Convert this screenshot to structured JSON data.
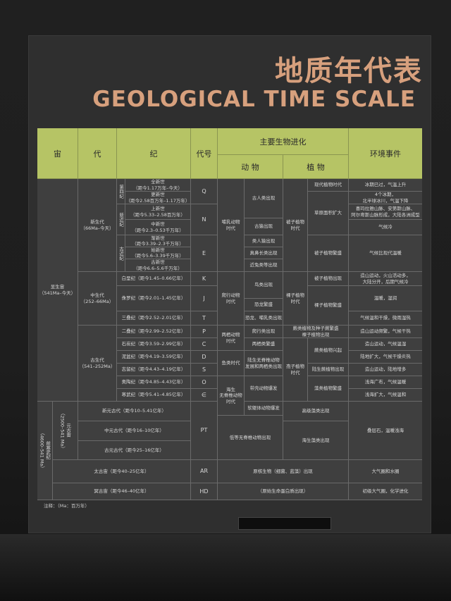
{
  "title_cn": "地质年代表",
  "title_en": "GEOLOGICAL TIME SCALE",
  "headers": {
    "eon": "宙",
    "era": "代",
    "period": "纪",
    "code": "代号",
    "bio": "主要生物进化",
    "animal": "动 物",
    "plant": "植 物",
    "env": "环境事件"
  },
  "eons": {
    "phanerozoic": "显生宙\n（541Ma–今天）",
    "precambrian": "前寒武纪\n（4600–541 Ma）",
    "proterozoic": "元古宙\n（2500–541 Ma）"
  },
  "eras": {
    "cenozoic": "新生代\n（66Ma–今天）",
    "mesozoic": "中生代\n（252–66Ma）",
    "paleozoic": "古生代\n（541–252Ma）"
  },
  "sub_periods": {
    "quaternary": "第四纪",
    "neogene": "新近纪",
    "paleogene": "古近纪"
  },
  "periods": [
    {
      "label": "全新世\n（距今1.17万年–今天）",
      "code": "Q"
    },
    {
      "label": "更新世\n（距今2.58百万年–1.17万年）",
      "code": ""
    },
    {
      "label": "上新世\n（距今5.33–2.58百万年）",
      "code": "N"
    },
    {
      "label": "中新世\n（距今2.3–0.53千万年）",
      "code": ""
    },
    {
      "label": "渐新世\n（距今3.39–2.3千万年）",
      "code": "E"
    },
    {
      "label": "始新世\n（距今5.6–3.39千万年）",
      "code": ""
    },
    {
      "label": "古新世\n（距今6.6–5.6千万年）",
      "code": ""
    },
    {
      "label": "白垩纪（距今1.45–0.66亿年）",
      "code": "K"
    },
    {
      "label": "侏罗纪（距今2.01–1.45亿年）",
      "code": "J"
    },
    {
      "label": "三叠纪（距今2.52–2.01亿年）",
      "code": "T"
    },
    {
      "label": "二叠纪（距今2.99–2.52亿年）",
      "code": "P"
    },
    {
      "label": "石炭纪（距今3.59–2.99亿年）",
      "code": "C"
    },
    {
      "label": "泥盆纪（距今4.19–3.59亿年）",
      "code": "D"
    },
    {
      "label": "志留纪（距今4.43–4.19亿年）",
      "code": "S"
    },
    {
      "label": "奥陶纪（距今4.85–4.43亿年）",
      "code": "O"
    },
    {
      "label": "寒武纪（距今5.41–4.85亿年）",
      "code": "∈"
    }
  ],
  "proterozoic_eras": [
    "新元古代（距今10–5.41亿年）",
    "中元古代（距今16–10亿年）",
    "古元古代（距今25–16亿年）"
  ],
  "proterozoic_code": "PT",
  "archean": {
    "label": "太古宙（距今40–25亿年）",
    "code": "AR"
  },
  "hadean": {
    "label": "冥古宙（距今46–40亿年）",
    "code": "HD"
  },
  "animals": {
    "mammal_age": "哺乳动物\n时代",
    "ancient_human": "古人类出现",
    "ancient_ape": "古猿出现",
    "monkey": "类人猿出现",
    "proboscidean": "真鼻长类出现",
    "hoofed": "近兔类等出现",
    "reptile_age": "爬行动物\n时代",
    "bird": "鸟类出现",
    "dino": "恐龙繁盛",
    "mammal_early": "恐龙、哺乳类出现",
    "amphibian_age": "两栖动物\n时代",
    "reptile_appear": "爬行类出现",
    "amphibian_boom": "两栖类繁盛",
    "fish_age": "鱼类时代",
    "jawed": "陆生无脊椎动物\n发展和两栖类出现",
    "marine_inv": "海生\n无脊椎动物\n时代",
    "trilobite": "带壳动物爆发",
    "soft": "软躯体动物爆发",
    "low_inv": "低等无脊椎动物出现"
  },
  "plants": {
    "angio_age": "被子植物\n时代",
    "modern": "现代植物时代",
    "grassland": "草原面积扩大",
    "angio_boom": "被子植物繁盛",
    "gymno_age": "裸子植物\n时代",
    "angio_appear": "被子植物出现",
    "gymno_boom": "裸子植物繁盛",
    "fern_gymno": "蕨类植物及种子蕨繁盛\n裸子植物出现",
    "fern_boom": "蕨类植物兴起",
    "land_plant": "陆生蕨植物出现",
    "spore_age": "孢子植物\n时代",
    "algae_boom": "藻类植物繁盛",
    "algae_high": "高级藻类出现",
    "marine_algae": "海生藻类出现",
    "prokaryote": "原核生物（细菌、蓝藻）出现",
    "protolife": "（原始生命蛋白质出现）"
  },
  "env": {
    "ice_melt": "冰期已过，气温上升",
    "ice4": "4个冰期，\n北半球冰川，气温下降",
    "himalaya": "喜玛拉雅山脉、安第斯山脉、\n阿尔卑斯山脉形成，大陆各洲成型",
    "cooling": "气候冷",
    "modern_climate": "气候比现代温暖",
    "yanshan": "造山运动，火山活动多，\n大陆分开，后期气候冷",
    "warm_humid": "温暖，湿润",
    "dry": "气候温和干燥，微雨湿热",
    "orogeny_dry": "造山运动频繁，气候干热",
    "orogeny_warm": "造山运动，气候温湿",
    "land_expand": "陆地扩大，气候干燥炎热",
    "orogeny_land": "造山运动，陆地增多",
    "shallow_sea": "浅海广布，气候温暖",
    "sea_expand": "浅海扩大，气候温和",
    "stromatolite": "叠层石，温暖浅海",
    "atmosphere": "大气圈和水圈",
    "crust": "初级大气圈，化学进化"
  },
  "note": "注释：（Ma：百万年）"
}
